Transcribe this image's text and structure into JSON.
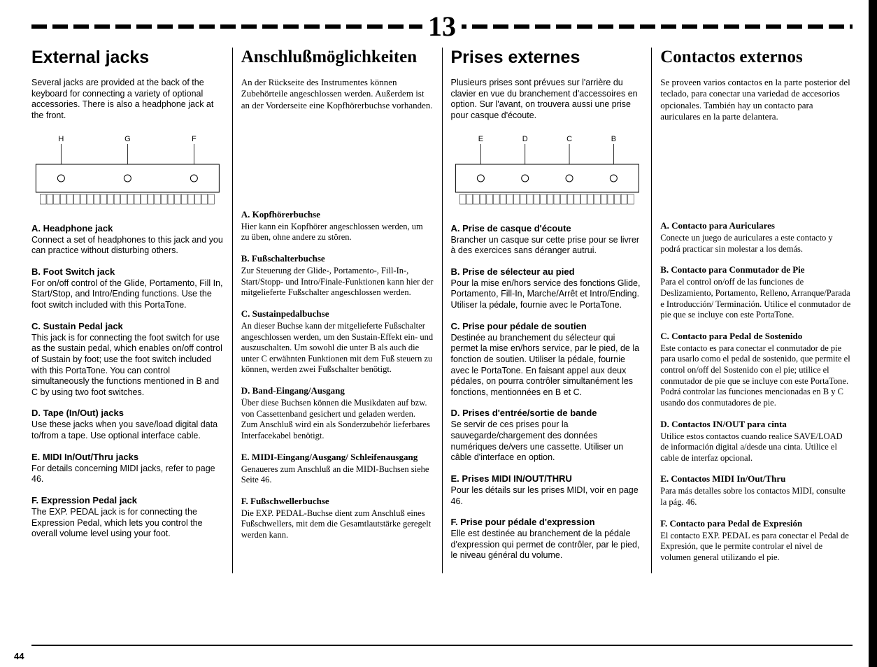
{
  "page_number": "13",
  "bottom_page": "44",
  "columns": [
    {
      "style": "sans",
      "heading_style": "sans",
      "heading": "External jacks",
      "intro": "Several jacks are provided at the back of the keyboard for connecting a variety of optional accessories. There is also a headphone jack at the front.",
      "diagram": {
        "labels": [
          "H",
          "G",
          "F"
        ]
      },
      "sections": [
        {
          "title": "A. Headphone jack",
          "body": "Connect a set of headphones to this jack and you can practice without disturbing others."
        },
        {
          "title": "B. Foot Switch jack",
          "body": "For on/off control of the Glide, Portamento, Fill In, Start/Stop, and Intro/Ending functions. Use the foot switch included with this PortaTone."
        },
        {
          "title": "C. Sustain Pedal jack",
          "body": "This jack is for connecting the foot switch for use as the sustain pedal, which enables on/off control of Sustain by foot; use the foot switch included with this PortaTone. You can control simultaneously the functions mentioned in B and C by using two foot switches."
        },
        {
          "title": "D. Tape (In/Out) jacks",
          "body": "Use these jacks when you save/load digital data to/from a tape. Use optional interface cable."
        },
        {
          "title": "E. MIDI In/Out/Thru jacks",
          "body": "For details concerning MIDI jacks, refer to page 46."
        },
        {
          "title": "F. Expression Pedal jack",
          "body": "The EXP. PEDAL jack is for connecting the Expression Pedal, which lets you control the overall volume level using your foot."
        }
      ]
    },
    {
      "style": "serif",
      "heading_style": "serif",
      "heading": "Anschlußmöglichkeiten",
      "intro": "An der Rückseite des Instrumentes können Zubehörteile angeschlossen werden. Außerdem ist an der Vorderseite eine Kopfhörerbuchse vorhanden.",
      "sections": [
        {
          "title": "A. Kopfhörerbuchse",
          "body": "Hier kann ein Kopfhörer angeschlossen werden, um zu üben, ohne andere zu stören."
        },
        {
          "title": "B. Fußschalterbuchse",
          "body": "Zur Steuerung der Glide-, Portamento-, Fill-In-, Start/Stopp- und Intro/Finale-Funktionen kann hier der mitgelieferte Fußschalter angeschlossen werden."
        },
        {
          "title": "C. Sustainpedalbuchse",
          "body": "An dieser Buchse kann der mitgelieferte Fußschalter angeschlossen werden, um den Sustain-Effekt ein- und auszuschalten. Um sowohl die unter B als auch die unter C erwähnten Funktionen mit dem Fuß steuern zu können, werden zwei Fußschalter benötigt."
        },
        {
          "title": "D. Band-Eingang/Ausgang",
          "body": "Über diese Buchsen können die Musikdaten auf bzw. von Cassettenband gesichert und geladen werden. Zum Anschluß wird ein als Sonderzubehör lieferbares Interfacekabel benötigt."
        },
        {
          "title": "E. MIDI-Eingang/Ausgang/ Schleifenausgang",
          "body": "Genaueres zum Anschluß an die MIDI-Buchsen siehe Seite 46."
        },
        {
          "title": "F. Fußschwellerbuchse",
          "body": "Die EXP. PEDAL-Buchse dient zum Anschluß eines Fußschwellers, mit dem die Gesamtlautstärke geregelt werden kann."
        }
      ]
    },
    {
      "style": "sans",
      "heading_style": "sans",
      "heading": "Prises externes",
      "intro": "Plusieurs prises sont prévues sur l'arrière du clavier en vue du branchement d'accessoires en option. Sur l'avant, on trouvera aussi une prise pour casque d'écoute.",
      "diagram": {
        "labels": [
          "E",
          "D",
          "C",
          "B"
        ]
      },
      "sections": [
        {
          "title": "A. Prise de casque d'écoute",
          "body": "Brancher un casque sur cette prise pour se livrer à des exercices sans déranger autrui."
        },
        {
          "title": "B. Prise de sélecteur au pied",
          "body": "Pour la mise en/hors service des fonctions Glide, Portamento, Fill-In, Marche/Arrêt et Intro/Ending. Utiliser la pédale, fournie avec le PortaTone."
        },
        {
          "title": "C. Prise pour pédale de soutien",
          "body": "Destinée au branchement du sélecteur qui permet la mise en/hors service, par le pied, de la fonction de soutien. Utiliser la pédale, fournie avec le PortaTone. En faisant appel aux deux pédales, on pourra contrôler simultanément les fonctions, mentionnées en B et C."
        },
        {
          "title": "D. Prises d'entrée/sortie de bande",
          "body": "Se servir de ces prises pour la sauvegarde/chargement des données numériques de/vers une cassette. Utiliser un câble d'interface en option."
        },
        {
          "title": "E. Prises MIDI IN/OUT/THRU",
          "body": "Pour les détails sur les prises MIDI, voir en page 46."
        },
        {
          "title": "F. Prise pour pédale d'expression",
          "body": "Elle est destinée au branchement de la pédale d'expression qui permet de contrôler, par le pied, le niveau général du volume."
        }
      ]
    },
    {
      "style": "serif",
      "heading_style": "serif",
      "heading": "Contactos externos",
      "intro": "Se proveen varios contactos en la parte posterior del teclado, para conectar una variedad de accesorios opcionales. También hay un contacto para auriculares en la parte delantera.",
      "sections": [
        {
          "title": "A. Contacto para Auriculares",
          "body": "Conecte un juego de auriculares a este contacto y podrá practicar sin molestar a los demás."
        },
        {
          "title": "B. Contacto para Conmutador de Pie",
          "body": "Para el control on/off de las funciones de Deslizamiento, Portamento, Relleno, Arranque/Parada e Introducción/ Terminación. Utilice el conmutador de pie que se incluye con este PortaTone."
        },
        {
          "title": "C. Contacto para Pedal de Sostenido",
          "body": "Este contacto es para conectar el conmutador de pie para usarlo como el pedal de sostenido, que permite el control on/off del Sostenido con el pie; utilice el conmutador de pie que se incluye con este PortaTone. Podrá controlar las funciones mencionadas en B y C usando dos conmutadores de pie."
        },
        {
          "title": "D. Contactos IN/OUT para cinta",
          "body": "Utilice estos contactos cuando realice SAVE/LOAD de información digital a/desde una cinta. Utilice el cable de interfaz opcional."
        },
        {
          "title": "E. Contactos MIDI In/Out/Thru",
          "body": "Para más detalles sobre los contactos MIDI, consulte la pág. 46."
        },
        {
          "title": "F. Contacto para Pedal de Expresión",
          "body": "El contacto EXP. PEDAL es para conectar el Pedal de Expresión, que le permite controlar el nivel de volumen general utilizando el pie."
        }
      ]
    }
  ]
}
